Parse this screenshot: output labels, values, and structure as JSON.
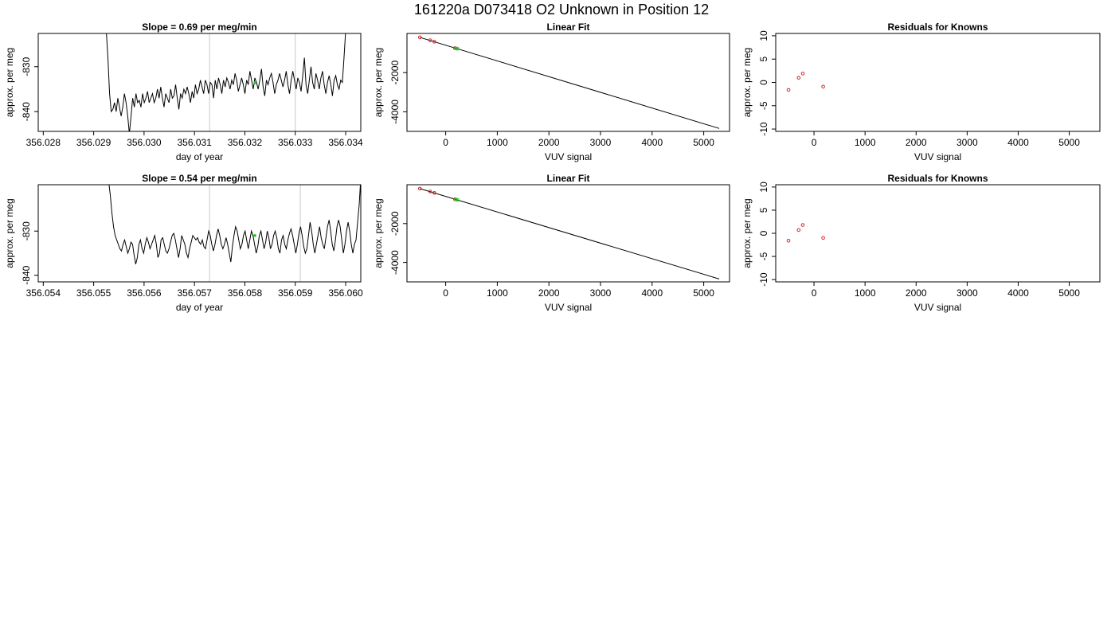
{
  "figure": {
    "title": "161220a     D073418   O2 Unknown in Position  12",
    "background": "#ffffff"
  },
  "colors": {
    "line": "#000000",
    "marker_known": "#d62728",
    "marker_unknown": "#22cc22",
    "guide": "#c8c8c8"
  },
  "chart_data": [
    {
      "id": "r1-timeseries",
      "type": "line",
      "title": "Slope =  0.69  per meg/min",
      "xlabel": "day of year",
      "ylabel": "approx. per meg",
      "xlim": [
        356.0279,
        356.0343
      ],
      "ylim": [
        -844.4,
        -822.6
      ],
      "xticks": [
        356.028,
        356.029,
        356.03,
        356.031,
        356.032,
        356.033,
        356.034
      ],
      "xtick_labels": [
        "356.028",
        "356.029",
        "356.030",
        "356.031",
        "356.032",
        "356.033",
        "356.034"
      ],
      "yticks": [
        -830,
        -840
      ],
      "ytick_labels": [
        "-830",
        "-840"
      ],
      "vlines": [
        356.0313,
        356.033
      ],
      "marker": {
        "x": 356.0322,
        "y": -833.6
      },
      "series": [
        {
          "x_start": 356.02925,
          "x_end": 356.034,
          "values": [
            -822,
            -828,
            -836,
            -840,
            -839.5,
            -838,
            -840,
            -837,
            -839,
            -841,
            -839,
            -836,
            -838,
            -841,
            -845,
            -841,
            -837,
            -839,
            -836,
            -838,
            -837.5,
            -839,
            -836,
            -838,
            -837,
            -835.5,
            -838,
            -837,
            -836,
            -838,
            -837,
            -835,
            -837,
            -834.5,
            -837,
            -839,
            -836,
            -837,
            -838,
            -835,
            -837,
            -836.5,
            -834,
            -837,
            -839.5,
            -836,
            -837,
            -835,
            -836,
            -834.5,
            -836,
            -838,
            -835.5,
            -837,
            -834,
            -836,
            -835,
            -833,
            -834.5,
            -836,
            -833,
            -834,
            -836,
            -833.5,
            -834,
            -837,
            -833,
            -835,
            -832.5,
            -834,
            -836,
            -833,
            -834.5,
            -832.5,
            -833.5,
            -835,
            -833,
            -834,
            -831.5,
            -833,
            -835.5,
            -834,
            -832.5,
            -834,
            -836,
            -833,
            -834,
            -831,
            -833,
            -835,
            -832.5,
            -833.5,
            -835,
            -833,
            -830.5,
            -834.5,
            -836.5,
            -833,
            -834,
            -832.5,
            -831.5,
            -833.5,
            -836,
            -834,
            -833,
            -831.5,
            -833,
            -834.5,
            -833,
            -831,
            -834,
            -836,
            -833,
            -831,
            -833,
            -835,
            -832.5,
            -833.5,
            -835.5,
            -832,
            -828,
            -834,
            -836,
            -833,
            -830,
            -833.5,
            -835,
            -831.5,
            -833,
            -835,
            -832.5,
            -831,
            -834,
            -836,
            -833.5,
            -832,
            -834,
            -836.5,
            -833,
            -832,
            -834,
            -835,
            -833,
            -833.5,
            -828,
            -822
          ]
        }
      ]
    },
    {
      "id": "r1-linearfit",
      "type": "scatter",
      "title": "Linear Fit",
      "xlabel": "VUV signal",
      "ylabel": "approx. per meg",
      "xlim": [
        -750,
        5500
      ],
      "ylim": [
        -5000,
        0
      ],
      "xticks": [
        0,
        1000,
        2000,
        3000,
        4000,
        5000
      ],
      "xtick_labels": [
        "0",
        "1000",
        "2000",
        "3000",
        "4000",
        "5000"
      ],
      "yticks": [
        -2000,
        -4000
      ],
      "ytick_labels": [
        "-2000",
        "-4000"
      ],
      "fit_line": {
        "x": [
          -500,
          5300
        ],
        "y": [
          -200,
          -4850
        ]
      },
      "known_points": [
        {
          "x": -500,
          "y": -200
        },
        {
          "x": -300,
          "y": -350
        },
        {
          "x": -220,
          "y": -420
        },
        {
          "x": 180,
          "y": -750
        }
      ],
      "unknown_points": [
        {
          "x": 200,
          "y": -760
        },
        {
          "x": 230,
          "y": -780
        }
      ]
    },
    {
      "id": "r1-residuals",
      "type": "scatter",
      "title": "Residuals for Knowns",
      "xlabel": "VUV signal",
      "ylabel": "approx. per meg",
      "xlim": [
        -750,
        5600
      ],
      "ylim": [
        -10.5,
        10.5
      ],
      "xticks": [
        0,
        1000,
        2000,
        3000,
        4000,
        5000
      ],
      "xtick_labels": [
        "0",
        "1000",
        "2000",
        "3000",
        "4000",
        "5000"
      ],
      "yticks": [
        10,
        5,
        0,
        -5,
        -10
      ],
      "ytick_labels": [
        "10",
        "5",
        "0",
        "-5",
        "-10"
      ],
      "known_points": [
        {
          "x": -500,
          "y": -1.6
        },
        {
          "x": -300,
          "y": 1.0
        },
        {
          "x": -220,
          "y": 1.9
        },
        {
          "x": 180,
          "y": -0.9
        }
      ]
    },
    {
      "id": "r2-timeseries",
      "type": "line",
      "title": "Slope =  0.54  per meg/min",
      "xlabel": "day of year",
      "ylabel": "approx. per meg",
      "xlim": [
        356.0539,
        356.0603
      ],
      "ylim": [
        -841.5,
        -819.5
      ],
      "xticks": [
        356.054,
        356.055,
        356.056,
        356.057,
        356.058,
        356.059,
        356.06
      ],
      "xtick_labels": [
        "356.054",
        "356.055",
        "356.056",
        "356.057",
        "356.058",
        "356.059",
        "356.060"
      ],
      "yticks": [
        -830,
        -840
      ],
      "ytick_labels": [
        "-830",
        "-840"
      ],
      "vlines": [
        356.0573,
        356.0591
      ],
      "marker": {
        "x": 356.0582,
        "y": -831
      },
      "series": [
        {
          "x_start": 356.0553,
          "x_end": 356.0603,
          "values": [
            -819,
            -822,
            -826,
            -829,
            -831,
            -832,
            -833,
            -834,
            -834.5,
            -833,
            -832,
            -833.5,
            -835,
            -834,
            -832.5,
            -833,
            -835.5,
            -837.5,
            -836,
            -833,
            -832,
            -834,
            -835,
            -833,
            -831.5,
            -832.5,
            -834,
            -833,
            -832,
            -831,
            -833,
            -836,
            -835,
            -832,
            -831.5,
            -833,
            -834.5,
            -835,
            -834,
            -832.5,
            -831,
            -830.5,
            -832,
            -834,
            -836,
            -834,
            -831,
            -832,
            -833,
            -835,
            -836,
            -834,
            -832.5,
            -831,
            -831.5,
            -832,
            -831.5,
            -832.5,
            -833,
            -832,
            -833.5,
            -834,
            -832,
            -830,
            -831,
            -833,
            -834.5,
            -833,
            -831,
            -829.5,
            -831,
            -833,
            -834,
            -833,
            -831.5,
            -833,
            -835,
            -837,
            -833.5,
            -831,
            -829,
            -830,
            -832,
            -834,
            -833,
            -831,
            -830,
            -832,
            -834,
            -832,
            -830,
            -831,
            -833,
            -835,
            -833.5,
            -831,
            -830,
            -832,
            -834,
            -832.5,
            -830,
            -831.5,
            -834,
            -833,
            -831,
            -830,
            -831.5,
            -834,
            -835,
            -832,
            -831,
            -833,
            -834,
            -832,
            -830.5,
            -829.5,
            -831,
            -833,
            -835,
            -833,
            -830.5,
            -829,
            -831,
            -833.5,
            -835,
            -834,
            -831,
            -828,
            -830,
            -833,
            -835,
            -833,
            -831,
            -829,
            -831.5,
            -833,
            -834,
            -831.5,
            -829,
            -827.5,
            -830,
            -833,
            -834.5,
            -832,
            -829,
            -827.5,
            -829,
            -832,
            -835,
            -833,
            -830,
            -828,
            -830,
            -833,
            -835,
            -833,
            -832,
            -828,
            -824,
            -818
          ]
        }
      ]
    },
    {
      "id": "r2-linearfit",
      "type": "scatter",
      "title": "Linear Fit",
      "xlabel": "VUV signal",
      "ylabel": "approx. per meg",
      "xlim": [
        -750,
        5500
      ],
      "ylim": [
        -5000,
        0
      ],
      "xticks": [
        0,
        1000,
        2000,
        3000,
        4000,
        5000
      ],
      "xtick_labels": [
        "0",
        "1000",
        "2000",
        "3000",
        "4000",
        "5000"
      ],
      "yticks": [
        -2000,
        -4000
      ],
      "ytick_labels": [
        "-2000",
        "-4000"
      ],
      "fit_line": {
        "x": [
          -500,
          5300
        ],
        "y": [
          -200,
          -4850
        ]
      },
      "known_points": [
        {
          "x": -500,
          "y": -200
        },
        {
          "x": -300,
          "y": -350
        },
        {
          "x": -220,
          "y": -420
        },
        {
          "x": 180,
          "y": -750
        }
      ],
      "unknown_points": [
        {
          "x": 200,
          "y": -760
        },
        {
          "x": 230,
          "y": -780
        }
      ]
    },
    {
      "id": "r2-residuals",
      "type": "scatter",
      "title": "Residuals for Knowns",
      "xlabel": "VUV signal",
      "ylabel": "approx. per meg",
      "xlim": [
        -750,
        5600
      ],
      "ylim": [
        -10.5,
        10.5
      ],
      "xticks": [
        0,
        1000,
        2000,
        3000,
        4000,
        5000
      ],
      "xtick_labels": [
        "0",
        "1000",
        "2000",
        "3000",
        "4000",
        "5000"
      ],
      "yticks": [
        10,
        5,
        0,
        -5,
        -10
      ],
      "ytick_labels": [
        "10",
        "5",
        "0",
        "-5",
        "-10"
      ],
      "known_points": [
        {
          "x": -500,
          "y": -1.6
        },
        {
          "x": -300,
          "y": 0.7
        },
        {
          "x": -220,
          "y": 1.8
        },
        {
          "x": 180,
          "y": -1.0
        }
      ]
    }
  ]
}
